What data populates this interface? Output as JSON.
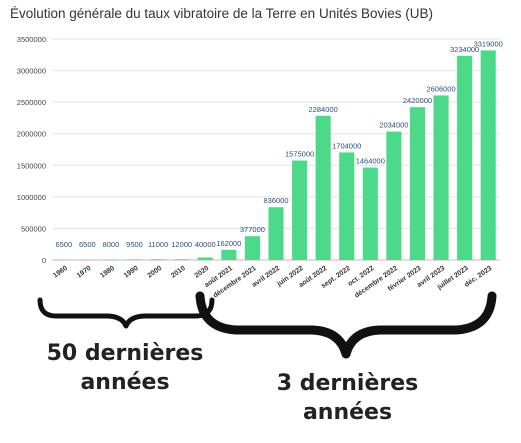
{
  "chart_data": {
    "type": "bar",
    "title": "Évolution générale du taux vibratoire de la Terre en Unités Bovies (UB)",
    "xlabel": "",
    "ylabel": "",
    "ylim": [
      0,
      3500000
    ],
    "yticks": [
      "0",
      "500000",
      "1000000",
      "1500000",
      "2000000",
      "2500000",
      "3000000",
      "3500000"
    ],
    "grid": true,
    "bar_color": "#4cd98a",
    "categories": [
      "1960",
      "1970",
      "1980",
      "1990",
      "2000",
      "2010",
      "2020",
      "août 2021",
      "décembre 2021",
      "avril 2022",
      "juin 2022",
      "août 2022",
      "sept. 2022",
      "oct. 2022",
      "décembre 2022",
      "février 2023",
      "avril 2023",
      "juillet 2023",
      "déc. 2023"
    ],
    "values": [
      6500,
      6500,
      8000,
      9500,
      11000,
      12000,
      40000,
      162000,
      377000,
      836000,
      1575000,
      2284000,
      1704000,
      1464000,
      2034000,
      2420000,
      2606000,
      3234000,
      3319000
    ],
    "data_labels": [
      "6500",
      "6500",
      "8000",
      "9500",
      "11000",
      "12000",
      "40000",
      "162000",
      "377000",
      "836000",
      "1575000",
      "2284000",
      "1704000",
      "1464000",
      "2034000",
      "2420000",
      "2606000",
      "3234000",
      "3319000"
    ]
  },
  "annotations": {
    "left_label": "50 dernières années",
    "right_label": "3 dernières années"
  }
}
